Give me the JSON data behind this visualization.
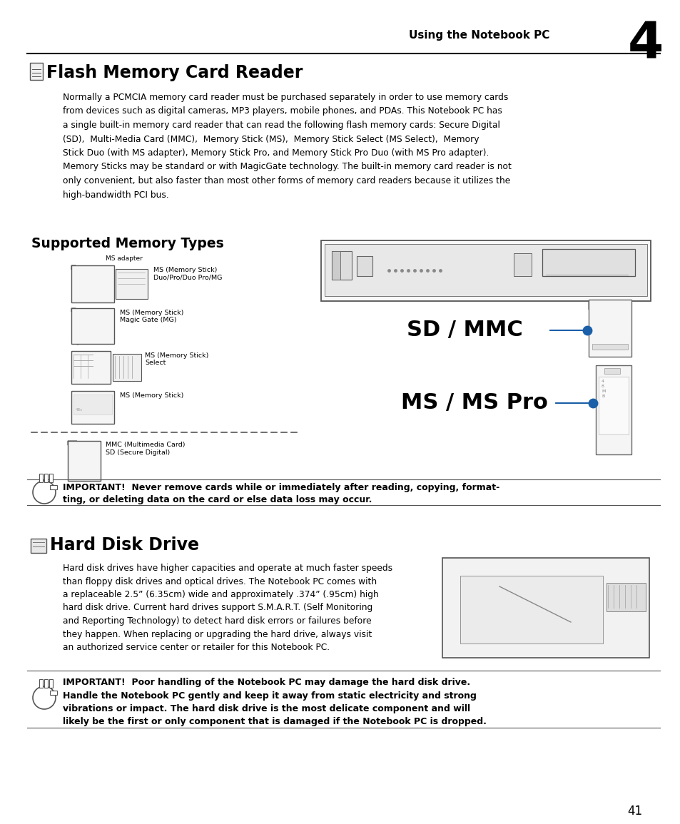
{
  "page_title": "Using the Notebook PC",
  "chapter_number": "4",
  "section1_title": "Flash Memory Card Reader",
  "section1_body_lines": [
    "Normally a PCMCIA memory card reader must be purchased separately in order to use memory cards",
    "from devices such as digital cameras, MP3 players, mobile phones, and PDAs. This Notebook PC has",
    "a single built-in memory card reader that can read the following flash memory cards: Secure Digital",
    "(SD),  Multi-Media Card (MMC),  Memory Stick (MS),  Memory Stick Select (MS Select),  Memory",
    "Stick Duo (with MS adapter), Memory Stick Pro, and Memory Stick Pro Duo (with MS Pro adapter).",
    "Memory Sticks may be standard or with MagicGate technology. The built-in memory card reader is not",
    "only convenient, but also faster than most other forms of memory card readers because it utilizes the",
    "high-bandwidth PCI bus."
  ],
  "subsection_title": "Supported Memory Types",
  "ms_adapter_label": "MS adapter",
  "ms_labels_line1": [
    "MS (Memory Stick)",
    "MS (Memory Stick)",
    "MS (Memory Stick)",
    "MS (Memory Stick)"
  ],
  "ms_labels_line2": [
    "Duo/Pro/Duo Pro/MG",
    "Magic Gate (MG)",
    "Select",
    ""
  ],
  "mmc_label1": "MMC (Multimedia Card)",
  "mmc_label2": "SD (Secure Digital)",
  "sd_mmc_label": "SD / MMC",
  "ms_mspro_label": "MS / MS Pro",
  "imp1_bold": "IMPORTANT!  Never remove cards while or immediately after reading, copying, format-",
  "imp1_bold2": "ting, or deleting data on the card or else data loss may occur.",
  "section2_title": "Hard Disk Drive",
  "section2_body_lines": [
    "Hard disk drives have higher capacities and operate at much faster speeds",
    "than floppy disk drives and optical drives. The Notebook PC comes with",
    "a replaceable 2.5” (6.35cm) wide and approximately .374” (.95cm) high",
    "hard disk drive. Current hard drives support S.M.A.R.T. (Self Monitoring",
    "and Reporting Technology) to detect hard disk errors or failures before",
    "they happen. When replacing or upgrading the hard drive, always visit",
    "an authorized service center or retailer for this Notebook PC."
  ],
  "imp2_line1": "IMPORTANT!  Poor handling of the Notebook PC may damage the hard disk drive.",
  "imp2_line2": "Handle the Notebook PC gently and keep it away from static electricity and strong",
  "imp2_line3": "vibrations or impact. The hard disk drive is the most delicate component and will",
  "imp2_line4": "likely be the first or only component that is damaged if the Notebook PC is dropped.",
  "page_number": "41",
  "bg_color": "#ffffff",
  "text_color": "#000000",
  "blue_color": "#1a5fa8",
  "line_color": "#000000",
  "gray_color": "#888888"
}
